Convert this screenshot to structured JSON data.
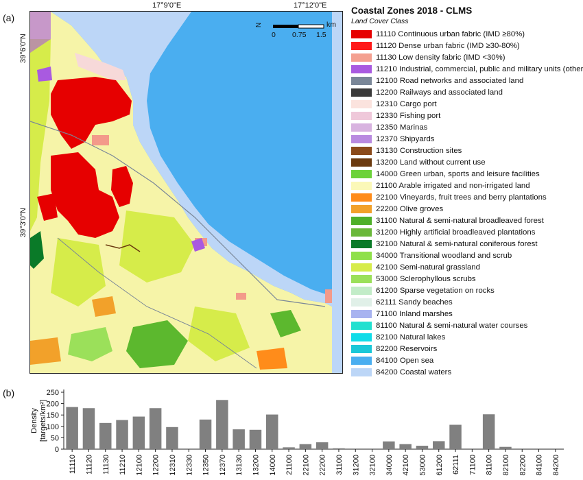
{
  "panel_a_label": "(a)",
  "panel_b_label": "(b)",
  "map": {
    "lon_labels": [
      "17°9'0\"E",
      "17°12'0\"E"
    ],
    "lat_labels": [
      "39°6'0\"N",
      "39°3'0\"N"
    ],
    "north_arrow_letter": "N",
    "scale_unit": "km",
    "scale_ticks": [
      "0",
      "0.75",
      "1.5"
    ],
    "colors": {
      "sea": "#4aaef0",
      "coastal": "#bcd6f7",
      "arable": "#f6f4a8",
      "urban_cont": "#e60000",
      "urban_low": "#f39a8a",
      "industrial": "#a95ae0",
      "green_urban": "#6cd24a",
      "semi_grass": "#d6ec4a",
      "broadleaf": "#5cb82e",
      "coniferous": "#0a7a28",
      "scrub": "#9be05a",
      "olive": "#f2a12a",
      "vineyard": "#ff8c1a",
      "port": "#f7d9d9"
    }
  },
  "legend": {
    "title": "Coastal Zones 2018 - CLMS",
    "subtitle": "Land Cover Class",
    "items": [
      {
        "label": "11110 Continuous urban fabric (IMD ≥80%)",
        "color": "#e60000"
      },
      {
        "label": "11120 Dense urban fabric (IMD ≥30-80%)",
        "color": "#ff1a1a"
      },
      {
        "label": "11130 Low density fabric (IMD <30%)",
        "color": "#f4a090"
      },
      {
        "label": "11210 Industrial, commercial, public and military units (other)",
        "color": "#a95ae0"
      },
      {
        "label": "12100 Road networks and associated land",
        "color": "#7a8798"
      },
      {
        "label": "12200 Railways and associated land",
        "color": "#3a3a3a"
      },
      {
        "label": "12310 Cargo port",
        "color": "#fbe3de"
      },
      {
        "label": "12330 Fishing port",
        "color": "#efc8da"
      },
      {
        "label": "12350 Marinas",
        "color": "#d8b3e0"
      },
      {
        "label": "12370 Shipyards",
        "color": "#b98ae0"
      },
      {
        "label": "13130 Construction sites",
        "color": "#8b4a1a"
      },
      {
        "label": "13200 Land without current use",
        "color": "#6b3a0f"
      },
      {
        "label": "14000 Green urban, sports and leisure facilities",
        "color": "#6cd23a"
      },
      {
        "label": "21100 Arable irrigated and non-irrigated land",
        "color": "#fbf8b8"
      },
      {
        "label": "22100 Vineyards, fruit trees and berry plantations",
        "color": "#ff8c1a"
      },
      {
        "label": "22200 Olive groves",
        "color": "#f2a12a"
      },
      {
        "label": "31100 Natural & semi-natural broadleaved forest",
        "color": "#4fb02a"
      },
      {
        "label": "31200 Highly artificial broadleaved plantations",
        "color": "#6ab83a"
      },
      {
        "label": "32100 Natural & semi-natural coniferous forest",
        "color": "#0a7a28"
      },
      {
        "label": "34000 Transitional woodland and scrub",
        "color": "#8fe04a"
      },
      {
        "label": "42100 Semi-natural grassland",
        "color": "#d6ec4a"
      },
      {
        "label": "53000 Sclerophyllous scrubs",
        "color": "#9be05a"
      },
      {
        "label": "61200 Sparse vegetation on rocks",
        "color": "#c2ecc8"
      },
      {
        "label": "62111 Sandy beaches",
        "color": "#e0f0e8"
      },
      {
        "label": "71100 Inland marshes",
        "color": "#a8b3f0"
      },
      {
        "label": "81100 Natural & semi-natural water courses",
        "color": "#22e0d0"
      },
      {
        "label": "82100 Natural lakes",
        "color": "#10dce8"
      },
      {
        "label": "82200 Reservoirs",
        "color": "#1ac8d8"
      },
      {
        "label": "84100 Open sea",
        "color": "#4aaef0"
      },
      {
        "label": "84200 Coastal waters",
        "color": "#bcd6f7"
      }
    ]
  },
  "chart_data": {
    "type": "bar",
    "categories": [
      "11110",
      "11120",
      "11130",
      "11210",
      "12100",
      "12200",
      "12310",
      "12330",
      "12350",
      "12370",
      "13130",
      "13200",
      "14000",
      "21100",
      "22100",
      "22200",
      "31100",
      "31200",
      "32100",
      "34000",
      "42100",
      "53000",
      "61200",
      "62111",
      "71100",
      "81100",
      "82100",
      "82200",
      "84100",
      "84200"
    ],
    "values": [
      185,
      180,
      115,
      128,
      143,
      180,
      97,
      0,
      130,
      216,
      87,
      85,
      152,
      8,
      22,
      30,
      4,
      0,
      0,
      34,
      22,
      15,
      35,
      107,
      0,
      153,
      10,
      0,
      0,
      0
    ],
    "ylabel_line1": "Density",
    "ylabel_line2": "[targets/km²]",
    "yticks": [
      "0",
      "50",
      "100",
      "150",
      "200",
      "250"
    ],
    "ylim": [
      0,
      250
    ],
    "bar_color": "#808080",
    "grid": false
  }
}
